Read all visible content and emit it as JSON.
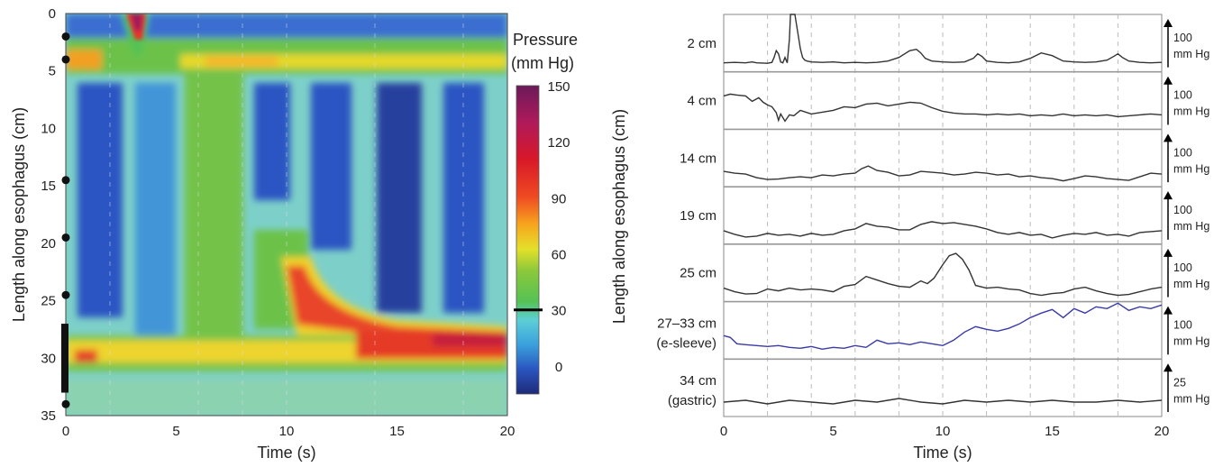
{
  "chart_data": [
    {
      "type": "heatmap",
      "xlabel": "Time (s)",
      "ylabel": "Length along esophagus (cm)",
      "xlim": [
        0,
        20
      ],
      "ylim": [
        35,
        0
      ],
      "x_ticks": [
        "0",
        "5",
        "10",
        "15",
        "20"
      ],
      "y_ticks": [
        "0",
        "5",
        "10",
        "15",
        "20",
        "25",
        "30",
        "35"
      ],
      "colorbar": {
        "title": [
          "Pressure",
          "(mm Hg)"
        ],
        "ticks": [
          "150",
          "120",
          "90",
          "60",
          "30",
          "0"
        ],
        "range": [
          -15,
          150
        ],
        "marker_value": 30
      },
      "sensor_positions_cm": [
        2,
        4,
        14.5,
        19.5,
        24.5,
        34
      ],
      "sleeve_span_cm": [
        27,
        33
      ],
      "features": {
        "uppers_sphincter_cm": [
          0,
          5
        ],
        "les_band_cm": [
          27,
          31
        ],
        "swallow_times_s": [
          0.5,
          3,
          6.5,
          9.5,
          12,
          15,
          18
        ]
      }
    },
    {
      "type": "line",
      "xlabel": "Time (s)",
      "ylabel": "Length along esophagus (cm)",
      "xlim": [
        0,
        20
      ],
      "x_ticks": [
        "0",
        "5",
        "10",
        "15",
        "20"
      ],
      "channels": [
        {
          "label": [
            "2 cm"
          ],
          "scale": [
            "100",
            "mm Hg"
          ],
          "color": "#333333",
          "x": [
            0,
            0.5,
            1,
            1.3,
            1.5,
            2,
            2.2,
            2.3,
            2.4,
            2.5,
            2.6,
            2.7,
            2.8,
            2.9,
            3,
            3.05,
            3.1,
            3.2,
            3.25,
            3.3,
            3.4,
            3.5,
            3.6,
            3.7,
            3.8,
            4,
            4.5,
            5,
            5.5,
            6,
            6.5,
            7,
            7.5,
            8,
            8.5,
            8.8,
            9,
            9.2,
            9.5,
            10,
            10.5,
            11,
            11.4,
            11.6,
            11.8,
            12,
            12.5,
            13,
            13.5,
            14,
            14.5,
            15,
            15.5,
            16,
            16.5,
            17,
            17.5,
            17.8,
            18,
            18.2,
            18.5,
            19,
            19.5,
            20
          ],
          "y": [
            8,
            9,
            8,
            10,
            8,
            7,
            9,
            20,
            35,
            28,
            10,
            8,
            20,
            8,
            60,
            130,
            160,
            150,
            130,
            100,
            70,
            40,
            20,
            14,
            12,
            10,
            9,
            10,
            8,
            9,
            8,
            9,
            12,
            20,
            35,
            38,
            30,
            18,
            12,
            10,
            9,
            10,
            18,
            28,
            22,
            12,
            9,
            8,
            10,
            18,
            30,
            24,
            12,
            10,
            9,
            10,
            14,
            22,
            28,
            20,
            12,
            9,
            8,
            9
          ]
        },
        {
          "label": [
            "4 cm"
          ],
          "scale": [
            "100",
            "mm Hg"
          ],
          "color": "#333333",
          "x": [
            0,
            0.3,
            0.6,
            1,
            1.3,
            1.6,
            1.8,
            2,
            2.2,
            2.4,
            2.5,
            2.6,
            2.8,
            3,
            3.2,
            3.5,
            4,
            4.5,
            5,
            5.5,
            6,
            6.5,
            7,
            7.5,
            8,
            8.5,
            9,
            9.5,
            10,
            10.5,
            11,
            11.5,
            12,
            12.5,
            13,
            13.5,
            14,
            14.5,
            15,
            15.5,
            16,
            16.5,
            17,
            17.5,
            18,
            18.5,
            19,
            19.5,
            20
          ],
          "y": [
            62,
            66,
            64,
            62,
            50,
            58,
            48,
            42,
            38,
            25,
            8,
            22,
            6,
            20,
            18,
            30,
            22,
            26,
            30,
            38,
            36,
            44,
            46,
            40,
            44,
            48,
            46,
            36,
            28,
            24,
            22,
            22,
            20,
            22,
            20,
            22,
            18,
            20,
            18,
            22,
            18,
            20,
            18,
            20,
            16,
            18,
            20,
            22,
            20
          ]
        },
        {
          "label": [
            "14 cm"
          ],
          "scale": [
            "100",
            "mm Hg"
          ],
          "color": "#333333",
          "x": [
            0,
            0.5,
            1,
            1.5,
            2,
            2.5,
            3,
            3.5,
            4,
            4.5,
            5,
            5.5,
            6,
            6.3,
            6.6,
            7,
            7.5,
            8,
            8.5,
            9,
            9.5,
            10,
            10.5,
            11,
            11.5,
            12,
            12.5,
            13,
            13.5,
            14,
            14.5,
            15,
            15.5,
            16,
            16.5,
            17,
            17.5,
            18,
            18.5,
            19,
            19.5,
            20
          ],
          "y": [
            22,
            18,
            16,
            8,
            4,
            5,
            8,
            10,
            8,
            14,
            12,
            16,
            18,
            28,
            34,
            24,
            20,
            12,
            14,
            22,
            20,
            18,
            14,
            16,
            20,
            18,
            14,
            16,
            10,
            12,
            8,
            6,
            1,
            6,
            12,
            10,
            6,
            4,
            2,
            10,
            18,
            16
          ]
        },
        {
          "label": [
            "19 cm"
          ],
          "scale": [
            "100",
            "mm Hg"
          ],
          "color": "#333333",
          "x": [
            0,
            0.5,
            1,
            1.5,
            2,
            2.5,
            3,
            3.5,
            4,
            4.5,
            5,
            5.5,
            6,
            6.5,
            7,
            7.5,
            8,
            8.5,
            9,
            9.5,
            10,
            10.5,
            11,
            11.5,
            12,
            12.5,
            13,
            13.5,
            14,
            14.5,
            15,
            15.5,
            16,
            16.5,
            17,
            17.5,
            18,
            18.5,
            19,
            19.5,
            20
          ],
          "y": [
            18,
            10,
            4,
            6,
            12,
            8,
            10,
            6,
            12,
            8,
            10,
            18,
            22,
            34,
            28,
            26,
            20,
            20,
            32,
            38,
            34,
            36,
            32,
            28,
            22,
            14,
            10,
            14,
            8,
            10,
            2,
            8,
            12,
            10,
            14,
            8,
            10,
            6,
            14,
            16,
            18
          ]
        },
        {
          "label": [
            "25 cm"
          ],
          "scale": [
            "100",
            "mm Hg"
          ],
          "color": "#333333",
          "x": [
            0,
            0.5,
            1,
            1.5,
            2,
            2.5,
            3,
            3.5,
            4,
            4.5,
            5,
            5.5,
            6,
            6.5,
            7,
            7.5,
            8,
            8.5,
            9,
            9.3,
            9.6,
            10,
            10.3,
            10.6,
            10.9,
            11.2,
            11.5,
            12,
            12.5,
            13,
            13.5,
            14,
            14.5,
            15,
            15.5,
            16,
            16.5,
            17,
            17.5,
            18,
            18.5,
            19,
            19.5,
            20
          ],
          "y": [
            18,
            10,
            5,
            6,
            16,
            12,
            18,
            14,
            16,
            14,
            10,
            22,
            26,
            44,
            36,
            28,
            22,
            20,
            34,
            28,
            40,
            70,
            90,
            95,
            82,
            58,
            24,
            18,
            20,
            16,
            14,
            6,
            2,
            6,
            8,
            16,
            20,
            12,
            6,
            2,
            4,
            10,
            16,
            20
          ]
        },
        {
          "label": [
            "27–33 cm",
            "(e-sleeve)"
          ],
          "scale": [
            "100",
            "mm Hg"
          ],
          "color": "#3a3aa8",
          "x": [
            0,
            0.3,
            0.6,
            1,
            1.5,
            2,
            2.5,
            3,
            3.5,
            4,
            4.5,
            5,
            5.5,
            6,
            6.5,
            7,
            7.5,
            8,
            8.5,
            9,
            9.5,
            10,
            10.5,
            11,
            11.5,
            12,
            12.5,
            13,
            13.5,
            14,
            14.5,
            15,
            15.5,
            16,
            16.5,
            17,
            17.5,
            18,
            18.5,
            19,
            19.5,
            20
          ],
          "y": [
            40,
            36,
            22,
            20,
            18,
            16,
            18,
            14,
            12,
            16,
            10,
            14,
            12,
            18,
            14,
            30,
            22,
            24,
            20,
            26,
            22,
            18,
            30,
            48,
            60,
            54,
            50,
            56,
            66,
            80,
            90,
            98,
            80,
            100,
            90,
            104,
            100,
            112,
            96,
            104,
            100,
            108
          ]
        },
        {
          "label": [
            "34 cm",
            "(gastric)"
          ],
          "scale": [
            "25",
            "mm Hg"
          ],
          "color": "#333333",
          "x": [
            0,
            1,
            2,
            3,
            4,
            5,
            6,
            7,
            8,
            9,
            10,
            11,
            12,
            13,
            14,
            15,
            16,
            17,
            18,
            19,
            20
          ],
          "y": [
            5,
            6,
            4,
            6,
            5,
            4,
            6,
            5,
            7,
            5,
            4,
            6,
            5,
            6,
            5,
            6,
            5,
            5,
            6,
            5,
            6
          ]
        }
      ]
    }
  ]
}
